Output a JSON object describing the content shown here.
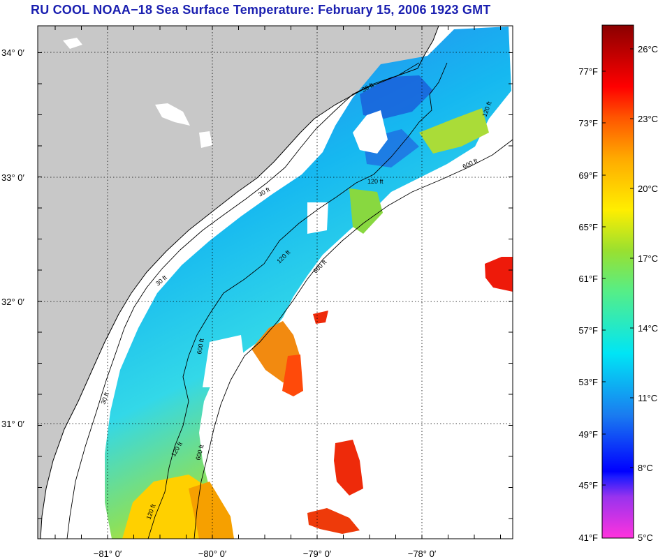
{
  "title": "RU COOL  NOAA−18  Sea Surface Temperature:  February 15, 2006 1923 GMT",
  "map": {
    "land_color": "#c8c8c8",
    "ocean_nodata_color": "#ffffff",
    "grid": true,
    "lon_ticks": [
      {
        "lon": -81,
        "label": "−81° 0′"
      },
      {
        "lon": -80,
        "label": "−80° 0′"
      },
      {
        "lon": -79,
        "label": "−79° 0′"
      },
      {
        "lon": -78,
        "label": "−78° 0′"
      }
    ],
    "lat_ticks": [
      {
        "lat": 34,
        "label": "34° 0′"
      },
      {
        "lat": 33,
        "label": "33° 0′"
      },
      {
        "lat": 32,
        "label": "32° 0′"
      },
      {
        "lat": 31,
        "label": "31° 0′"
      }
    ],
    "contour_labels": [
      "30 ft",
      "120 ft",
      "600 ft"
    ]
  },
  "colorbar": {
    "fahrenheit_labels": [
      "77°F",
      "73°F",
      "69°F",
      "65°F",
      "61°F",
      "57°F",
      "53°F",
      "49°F",
      "45°F",
      "41°F"
    ],
    "celsius_labels": [
      "26°C",
      "23°C",
      "20°C",
      "17°C",
      "14°C",
      "11°C",
      "8°C",
      "5°C"
    ],
    "fahrenheit_values": [
      77,
      73,
      69,
      65,
      61,
      57,
      53,
      49,
      45,
      41
    ],
    "celsius_values": [
      26,
      23,
      20,
      17,
      14,
      11,
      8,
      5
    ],
    "range_c": [
      5,
      27.5
    ],
    "colors": [
      "#ff33dd",
      "#9933ee",
      "#0000ff",
      "#1a7cf0",
      "#00e5f5",
      "#55ee88",
      "#99e030",
      "#ffee00",
      "#ffaa00",
      "#ff5500",
      "#ff0000",
      "#8a0000"
    ]
  }
}
